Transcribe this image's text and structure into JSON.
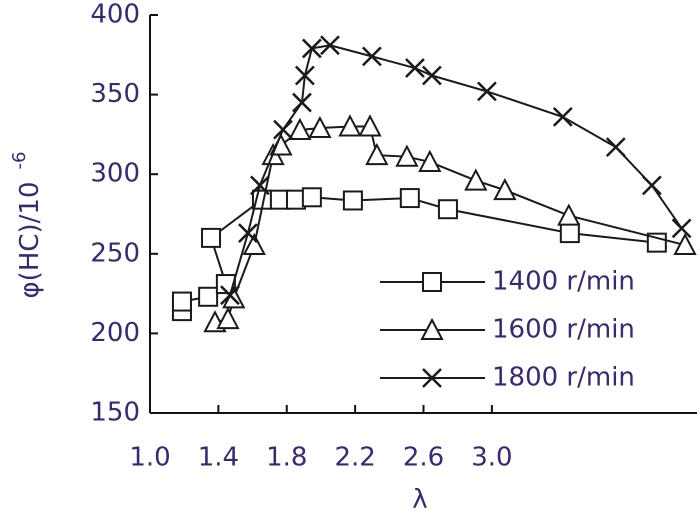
{
  "chart_data": {
    "type": "line",
    "x_label": "λ",
    "y_label": "φ(HC)/10",
    "y_label_sup": "-6",
    "xlim": [
      1.0,
      4.2
    ],
    "xticks": [
      {
        "value": 1.0,
        "label": "1.0"
      },
      1.4,
      1.8,
      2.2,
      2.6,
      {
        "value": 3.0,
        "label": "3.0"
      }
    ],
    "ylim": [
      150,
      400
    ],
    "yticks": [
      150,
      200,
      250,
      300,
      350,
      400
    ],
    "text_color": "#3b2a6b",
    "series": [
      {
        "name": "1400 r/min",
        "color": "#1a1a1a",
        "marker": "square",
        "x": [
          1.187,
          1.187,
          1.34,
          1.444,
          1.357,
          1.655,
          1.76,
          1.854,
          1.947,
          2.187,
          2.52,
          2.743,
          3.456,
          3.965
        ],
        "values": [
          214,
          220,
          223,
          231,
          260,
          284,
          284,
          284,
          285.5,
          283.5,
          285,
          278,
          263,
          257
        ]
      },
      {
        "name": "1600 r/min",
        "color": "#1a1a1a",
        "marker": "triangle",
        "x": [
          1.38,
          1.456,
          1.49,
          1.61,
          1.72,
          1.766,
          1.877,
          1.994,
          2.17,
          2.287,
          2.327,
          2.503,
          2.637,
          2.906,
          3.076,
          3.45,
          4.13
        ],
        "values": [
          207,
          209,
          222,
          255.5,
          312,
          318,
          327.8,
          329,
          330,
          330,
          312,
          311,
          307.7,
          296,
          290,
          274,
          255.5
        ]
      },
      {
        "name": "1800 r/min",
        "color": "#1a1a1a",
        "marker": "cross",
        "x": [
          1.468,
          1.573,
          1.643,
          1.778,
          1.889,
          1.906,
          1.947,
          2.053,
          2.298,
          2.55,
          2.649,
          2.971,
          3.415,
          3.725,
          3.936,
          4.11
        ],
        "values": [
          224,
          263,
          293,
          328,
          345,
          362,
          379,
          381,
          374,
          366.7,
          362,
          352,
          336,
          317,
          293,
          266
        ]
      }
    ]
  }
}
